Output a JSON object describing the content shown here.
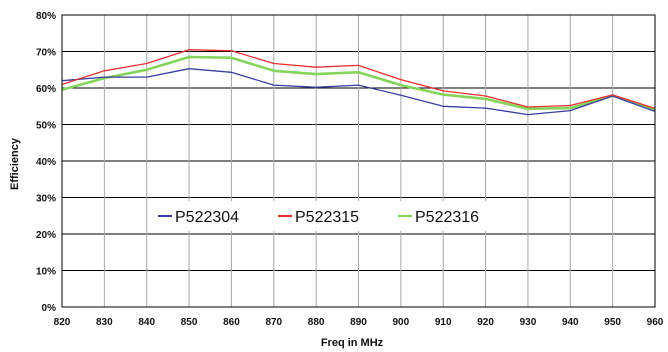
{
  "chart_data": {
    "type": "line",
    "title": "",
    "xlabel": "Freq in MHz",
    "ylabel": "Efficiency",
    "x": [
      820,
      830,
      840,
      850,
      860,
      870,
      880,
      890,
      900,
      910,
      920,
      930,
      940,
      950,
      960
    ],
    "xlim": [
      820,
      960
    ],
    "ylim": [
      0,
      80
    ],
    "y_ticks": [
      "0%",
      "10%",
      "20%",
      "30%",
      "40%",
      "50%",
      "60%",
      "70%",
      "80%"
    ],
    "x_ticks": [
      "820",
      "830",
      "840",
      "850",
      "860",
      "870",
      "880",
      "890",
      "900",
      "910",
      "920",
      "930",
      "940",
      "950",
      "960"
    ],
    "grid": true,
    "legend_position": "lower-center",
    "series": [
      {
        "name": "P522304",
        "color": "#3a3ea0",
        "values": [
          62,
          63,
          63,
          65.3,
          64.3,
          60.8,
          60.2,
          60.8,
          58,
          55,
          54.5,
          52.7,
          53.8,
          57.8,
          53.6
        ]
      },
      {
        "name": "P522315",
        "color": "#e63030",
        "values": [
          61,
          64.7,
          66.7,
          70.5,
          70.2,
          66.7,
          65.7,
          66.2,
          62.3,
          59.2,
          57.8,
          54.8,
          55.2,
          58.1,
          54.4
        ]
      },
      {
        "name": "P522316",
        "color": "#86d45c",
        "values": [
          59.5,
          62.7,
          65,
          68.5,
          68.3,
          64.7,
          63.8,
          64.3,
          60.8,
          58.2,
          57,
          54.3,
          54.5,
          57.9,
          54
        ]
      }
    ]
  }
}
